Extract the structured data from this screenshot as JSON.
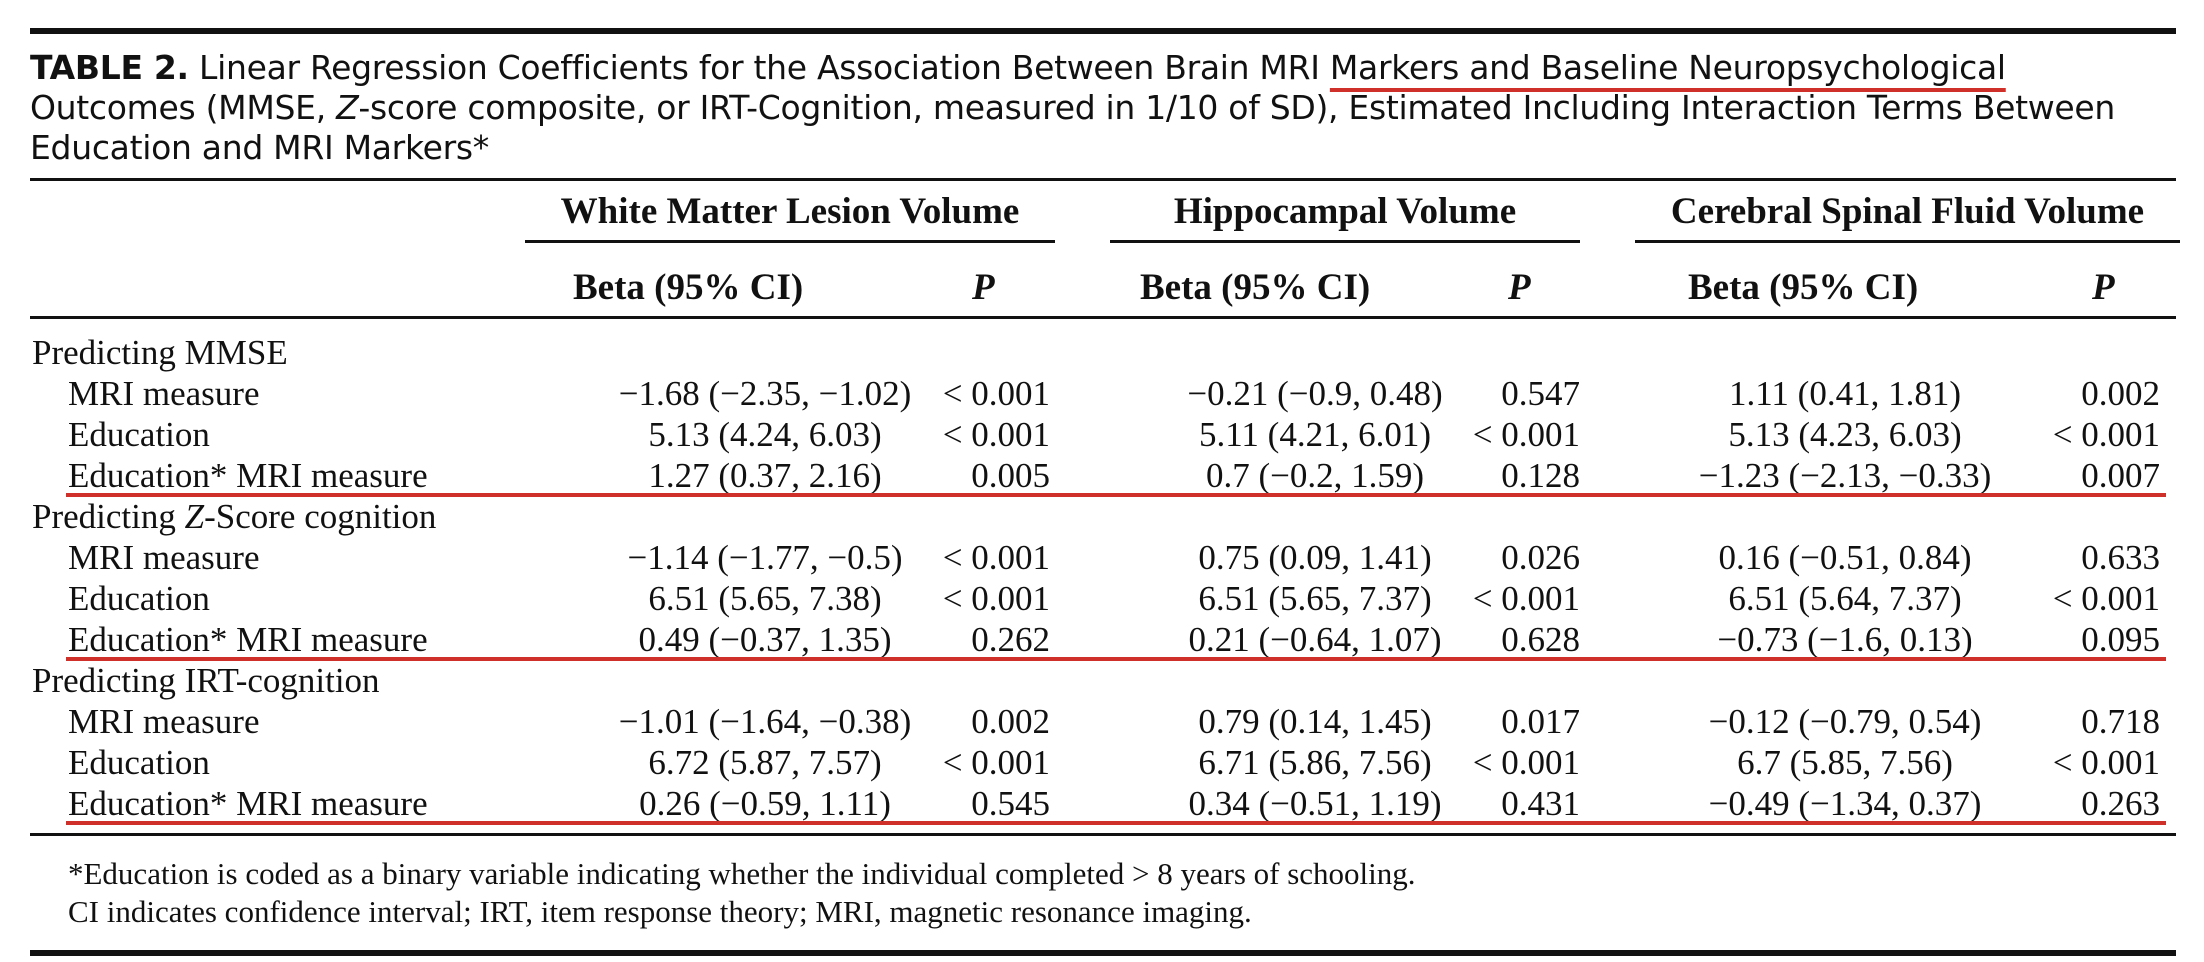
{
  "caption": {
    "label": "TABLE 2.",
    "text_before_highlight": "Linear Regression Coefficients for the Association Between Brain MRI ",
    "highlight": "Markers and Baseline Neuropsychological",
    "text_after_highlight": " Outcomes (MMSE, ",
    "z_letter": "Z",
    "text_end": "-score composite, or IRT-Cognition, measured in 1/10 of SD), Estimated Including Interaction Terms Between Education and MRI Markers*"
  },
  "groups": [
    "White Matter Lesion Volume",
    "Hippocampal Volume",
    "Cerebral Spinal Fluid Volume"
  ],
  "column_headers": {
    "beta": "Beta (95% CI)",
    "p": "P"
  },
  "sections": [
    {
      "title_prefix": "Predicting ",
      "title_italic": "",
      "title_rest": "MMSE",
      "rows": [
        {
          "label": "MRI measure",
          "cells": [
            "−1.68 (−2.35, −1.02)",
            "< 0.001",
            "−0.21 (−0.9, 0.48)",
            "0.547",
            "1.11 (0.41, 1.81)",
            "0.002"
          ]
        },
        {
          "label": "Education",
          "cells": [
            "5.13 (4.24, 6.03)",
            "< 0.001",
            "5.11 (4.21, 6.01)",
            "< 0.001",
            "5.13 (4.23, 6.03)",
            "< 0.001"
          ]
        },
        {
          "label": "Education* MRI measure",
          "cells": [
            "1.27 (0.37, 2.16)",
            "0.005",
            "0.7 (−0.2, 1.59)",
            "0.128",
            "−1.23 (−2.13, −0.33)",
            "0.007"
          ]
        }
      ]
    },
    {
      "title_prefix": "Predicting ",
      "title_italic": "Z",
      "title_rest": "-Score cognition",
      "rows": [
        {
          "label": "MRI measure",
          "cells": [
            "−1.14 (−1.77, −0.5)",
            "< 0.001",
            "0.75 (0.09, 1.41)",
            "0.026",
            "0.16 (−0.51, 0.84)",
            "0.633"
          ]
        },
        {
          "label": "Education",
          "cells": [
            "6.51 (5.65, 7.38)",
            "< 0.001",
            "6.51 (5.65, 7.37)",
            "< 0.001",
            "6.51 (5.64, 7.37)",
            "< 0.001"
          ]
        },
        {
          "label": "Education* MRI measure",
          "cells": [
            "0.49 (−0.37, 1.35)",
            "0.262",
            "0.21 (−0.64, 1.07)",
            "0.628",
            "−0.73 (−1.6, 0.13)",
            "0.095"
          ]
        }
      ]
    },
    {
      "title_prefix": "Predicting ",
      "title_italic": "",
      "title_rest": "IRT-cognition",
      "rows": [
        {
          "label": "MRI measure",
          "cells": [
            "−1.01 (−1.64, −0.38)",
            "0.002",
            "0.79 (0.14, 1.45)",
            "0.017",
            "−0.12 (−0.79, 0.54)",
            "0.718"
          ]
        },
        {
          "label": "Education",
          "cells": [
            "6.72 (5.87, 7.57)",
            "< 0.001",
            "6.71 (5.86, 7.56)",
            "< 0.001",
            "6.7 (5.85, 7.56)",
            "< 0.001"
          ]
        },
        {
          "label": "Education* MRI measure",
          "cells": [
            "0.26 (−0.59, 1.11)",
            "0.545",
            "0.34 (−0.51, 1.19)",
            "0.431",
            "−0.49 (−1.34, 0.37)",
            "0.263"
          ]
        }
      ]
    }
  ],
  "footnotes": [
    "*Education is coded as a binary variable indicating whether the individual completed > 8 years of schooling.",
    "CI indicates confidence interval; IRT, item response theory; MRI, magnetic resonance imaging."
  ],
  "colors": {
    "rule": "#111111",
    "highlight": "#d0302a"
  }
}
